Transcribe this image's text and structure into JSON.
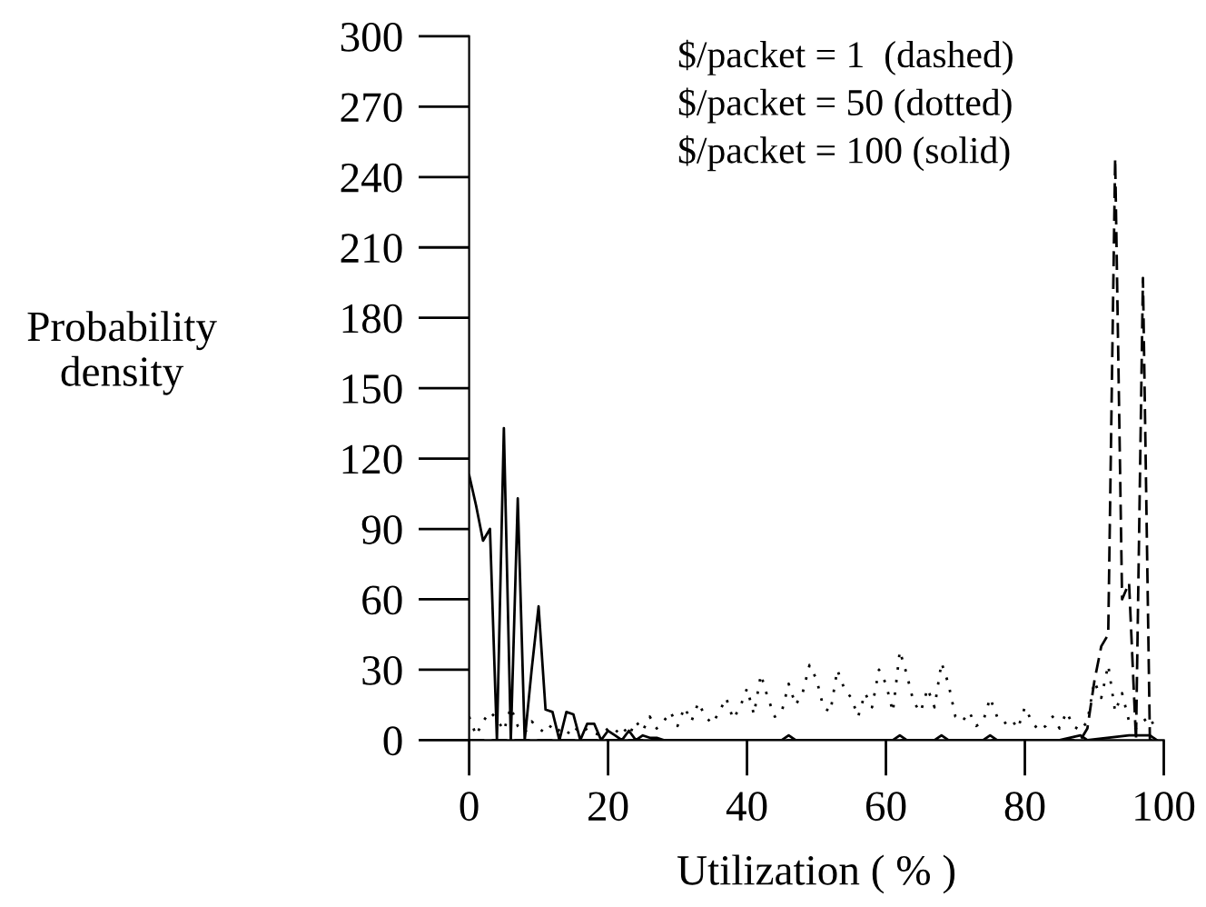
{
  "chart_data": {
    "type": "line",
    "xlabel": "Utilization ( % )",
    "ylabel": "Probability\ndensity",
    "xlim": [
      0,
      100
    ],
    "xticks": [
      0,
      20,
      40,
      60,
      80,
      100
    ],
    "ylim": [
      0,
      300
    ],
    "yticks": [
      0,
      30,
      60,
      90,
      120,
      150,
      180,
      210,
      240,
      270,
      300
    ],
    "grid": false,
    "marker": "none",
    "annotations": [
      "$/packet = 1  (dashed)",
      "$/packet = 50 (dotted)",
      "$/packet = 100 (solid)"
    ],
    "series": [
      {
        "color": "#000000",
        "line_style": "dashed",
        "x": [
          0,
          88,
          89,
          90,
          91,
          92,
          93,
          94,
          95,
          96,
          97,
          98,
          99
        ],
        "values": [
          0,
          0,
          5,
          25,
          40,
          45,
          248,
          60,
          67,
          0,
          197,
          0,
          0
        ]
      },
      {
        "color": "#000000",
        "line_style": "dotted",
        "x": [
          0,
          1,
          2,
          3,
          4,
          5,
          6,
          7,
          8,
          9,
          10,
          11,
          12,
          13,
          14,
          15,
          16,
          17,
          18,
          19,
          20,
          21,
          22,
          23,
          24,
          25,
          26,
          27,
          28,
          29,
          30,
          31,
          32,
          33,
          34,
          35,
          36,
          37,
          38,
          39,
          40,
          41,
          42,
          43,
          44,
          45,
          46,
          47,
          48,
          49,
          50,
          51,
          52,
          53,
          54,
          55,
          56,
          57,
          58,
          59,
          60,
          61,
          62,
          63,
          64,
          65,
          66,
          67,
          68,
          69,
          70,
          71,
          72,
          73,
          74,
          75,
          76,
          77,
          78,
          79,
          80,
          81,
          82,
          83,
          84,
          85,
          86,
          87,
          88,
          89,
          90,
          91,
          92,
          93,
          94,
          95,
          96,
          97,
          98,
          99
        ],
        "values": [
          10,
          2,
          8,
          12,
          9,
          4,
          14,
          6,
          3,
          8,
          5,
          3,
          7,
          4,
          2,
          6,
          3,
          5,
          3,
          2,
          5,
          3,
          6,
          2,
          8,
          4,
          10,
          5,
          8,
          12,
          6,
          14,
          8,
          16,
          10,
          7,
          12,
          18,
          9,
          14,
          22,
          11,
          28,
          18,
          10,
          12,
          24,
          15,
          20,
          32,
          26,
          14,
          12,
          30,
          22,
          18,
          10,
          20,
          14,
          30,
          24,
          12,
          38,
          28,
          16,
          12,
          22,
          14,
          33,
          24,
          10,
          8,
          12,
          6,
          8,
          18,
          10,
          7,
          9,
          5,
          14,
          8,
          4,
          6,
          10,
          5,
          12,
          6,
          4,
          8,
          25,
          18,
          32,
          12,
          20,
          8,
          5,
          8,
          10,
          3
        ]
      },
      {
        "color": "#000000",
        "line_style": "solid",
        "x": [
          0,
          1,
          2,
          3,
          4,
          5,
          6,
          7,
          8,
          9,
          10,
          11,
          12,
          13,
          14,
          15,
          16,
          17,
          18,
          19,
          20,
          21,
          22,
          23,
          24,
          25,
          26,
          27,
          28,
          30,
          35,
          40,
          45,
          46,
          47,
          55,
          61,
          62,
          63,
          67,
          68,
          69,
          74,
          75,
          76,
          85,
          88,
          89,
          95,
          98,
          99
        ],
        "values": [
          113,
          100,
          85,
          90,
          0,
          133,
          0,
          103,
          0,
          30,
          57,
          13,
          12,
          0,
          12,
          11,
          0,
          7,
          7,
          0,
          4,
          2,
          0,
          4,
          0,
          2,
          1,
          1,
          0,
          0,
          0,
          0,
          0,
          2,
          0,
          0,
          0,
          2,
          0,
          0,
          2,
          0,
          0,
          2,
          0,
          0,
          2,
          0,
          2,
          2,
          0
        ]
      }
    ]
  }
}
